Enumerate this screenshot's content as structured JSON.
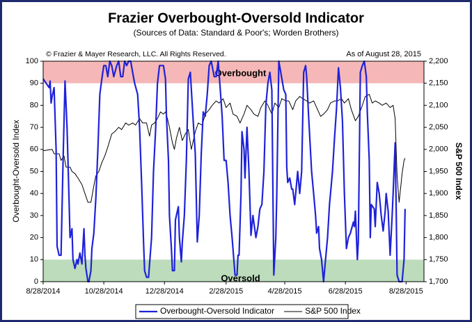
{
  "chart_data": {
    "type": "line",
    "title": "Frazier Overbought-Oversold Indicator",
    "subtitle": "(Sources of Data: Standard & Poor's; Worden Brothers)",
    "annotations": [
      "© Frazier & Mayer Research, LLC. All Rights Reserved.",
      "As of August 28, 2015"
    ],
    "ylabel": "Overbought-Oversold Index",
    "y2label": "S&P 500 Index",
    "xlim": [
      0,
      383
    ],
    "xticks": [
      {
        "value": 0,
        "label": "8/28/2014"
      },
      {
        "value": 61,
        "label": "10/28/2014"
      },
      {
        "value": 122,
        "label": "12/28/2014"
      },
      {
        "value": 184,
        "label": "2/28/2015"
      },
      {
        "value": 243,
        "label": "4/28/2015"
      },
      {
        "value": 304,
        "label": "6/28/2015"
      },
      {
        "value": 365,
        "label": "8/28/2015"
      }
    ],
    "ylim": [
      0,
      100
    ],
    "yticks": [
      0,
      10,
      20,
      30,
      40,
      50,
      60,
      70,
      80,
      90,
      100
    ],
    "y2lim": [
      1700,
      2200
    ],
    "y2ticks": [
      {
        "value": 1700,
        "label": "1,700"
      },
      {
        "value": 1750,
        "label": "1,750"
      },
      {
        "value": 1800,
        "label": "1,800"
      },
      {
        "value": 1850,
        "label": "1,850"
      },
      {
        "value": 1900,
        "label": "1,900"
      },
      {
        "value": 1950,
        "label": "1,950"
      },
      {
        "value": 2000,
        "label": "2,000"
      },
      {
        "value": 2050,
        "label": "2,050"
      },
      {
        "value": 2100,
        "label": "2,100"
      },
      {
        "value": 2150,
        "label": "2,150"
      },
      {
        "value": 2200,
        "label": "2,200"
      }
    ],
    "bands": [
      {
        "label": "Overbought",
        "range": [
          90,
          100
        ],
        "color": "#f5b7b7"
      },
      {
        "label": "Oversold",
        "range": [
          0,
          10
        ],
        "color": "#bcdcbc"
      }
    ],
    "legend": "bottom",
    "series": [
      {
        "name": "Overbought-Oversold Indicator",
        "color": "#1f22d8",
        "axis": "y",
        "x": [
          0,
          3,
          6,
          7,
          8,
          9,
          11,
          13,
          14,
          16,
          18,
          20,
          22,
          24,
          26,
          27,
          29,
          30,
          32,
          34,
          35,
          37,
          39,
          41,
          42,
          43,
          45,
          46,
          48,
          49,
          51,
          53,
          55,
          57,
          59,
          61,
          63,
          65,
          67,
          69,
          71,
          74,
          76,
          78,
          80,
          82,
          84,
          86,
          88,
          90,
          92,
          95,
          97,
          99,
          101,
          102,
          104,
          106,
          109,
          111,
          113,
          115,
          117,
          119,
          121,
          123,
          124,
          126,
          127,
          129,
          130,
          132,
          133,
          134,
          136,
          137,
          139,
          140,
          142,
          144,
          146,
          148,
          151,
          153,
          155,
          157,
          159,
          161,
          163,
          165,
          167,
          169,
          172,
          174,
          176,
          178,
          180,
          182,
          184,
          186,
          188,
          190,
          193,
          195,
          196,
          197,
          199,
          200,
          202,
          203,
          205,
          207,
          209,
          211,
          214,
          216,
          218,
          220,
          222,
          224,
          226,
          228,
          230,
          232,
          234,
          235,
          237,
          239,
          242,
          244,
          245,
          246,
          248,
          250,
          251,
          253,
          256,
          258,
          260,
          262,
          264,
          265,
          267,
          270,
          272,
          274,
          275,
          277,
          278,
          280,
          282,
          284,
          286,
          288,
          291,
          293,
          295,
          297,
          299,
          301,
          303,
          305,
          307,
          309,
          312,
          313,
          314,
          316,
          317,
          319,
          321,
          323,
          325,
          326,
          328,
          329,
          330,
          333,
          334,
          336,
          338,
          340,
          342,
          344,
          345,
          347,
          349,
          351,
          352,
          354,
          355,
          356,
          358,
          361,
          363,
          364
        ],
        "values": [
          92,
          90,
          88,
          91,
          81,
          84,
          88,
          60,
          16,
          12,
          12,
          55,
          91,
          70,
          38,
          20,
          24,
          10,
          6,
          10,
          8,
          13,
          8,
          24,
          12,
          6,
          0,
          0,
          5,
          15,
          22,
          38,
          60,
          85,
          92,
          98,
          98,
          93,
          100,
          98,
          93,
          98,
          100,
          93,
          93,
          100,
          98,
          100,
          100,
          95,
          90,
          85,
          70,
          45,
          18,
          5,
          2,
          2,
          20,
          50,
          68,
          90,
          98,
          98,
          98,
          92,
          75,
          55,
          30,
          15,
          5,
          5,
          28,
          30,
          34,
          20,
          9,
          18,
          30,
          55,
          92,
          95,
          72,
          58,
          18,
          30,
          58,
          77,
          75,
          85,
          98,
          100,
          93,
          93,
          100,
          88,
          75,
          55,
          55,
          45,
          30,
          20,
          3,
          3,
          12,
          12,
          40,
          68,
          60,
          47,
          70,
          50,
          21,
          30,
          20,
          25,
          33,
          35,
          50,
          80,
          90,
          95,
          87,
          3,
          20,
          40,
          100,
          95,
          87,
          85,
          52,
          45,
          47,
          42,
          42,
          35,
          50,
          40,
          50,
          95,
          98,
          93,
          75,
          50,
          40,
          30,
          22,
          25,
          15,
          10,
          0,
          10,
          20,
          35,
          50,
          65,
          78,
          97,
          88,
          73,
          40,
          15,
          20,
          22,
          27,
          25,
          32,
          10,
          18,
          95,
          98,
          100,
          93,
          77,
          55,
          20,
          35,
          33,
          25,
          45,
          40,
          30,
          23,
          32,
          40,
          32,
          12,
          30,
          40,
          63,
          35,
          3,
          0,
          0,
          10,
          33
        ]
      },
      {
        "name": "S&P 500 Index",
        "color": "#000000",
        "axis": "y2",
        "x": [
          0,
          9,
          11,
          16,
          18,
          21,
          23,
          27,
          29,
          32,
          35,
          39,
          42,
          45,
          48,
          50,
          52,
          53,
          56,
          59,
          62,
          65,
          69,
          72,
          76,
          79,
          83,
          86,
          90,
          93,
          97,
          100,
          104,
          107,
          109,
          112,
          115,
          118,
          121,
          123,
          125,
          127,
          130,
          132,
          134,
          137,
          140,
          143,
          146,
          149,
          153,
          156,
          160,
          163,
          167,
          170,
          174,
          177,
          181,
          184,
          188,
          191,
          195,
          198,
          202,
          205,
          209,
          212,
          216,
          219,
          223,
          226,
          230,
          233,
          237,
          240,
          244,
          247,
          251,
          254,
          258,
          261,
          265,
          268,
          272,
          275,
          279,
          282,
          286,
          289,
          293,
          296,
          300,
          303,
          307,
          310,
          314,
          317,
          321,
          324,
          328,
          331,
          334,
          338,
          341,
          345,
          349,
          352,
          354,
          356,
          358,
          361,
          363,
          364
        ],
        "values": [
          1997,
          2000,
          1990,
          1990,
          1975,
          1985,
          1960,
          1960,
          1950,
          1945,
          1935,
          1920,
          1900,
          1880,
          1880,
          1905,
          1930,
          1940,
          1950,
          1970,
          1985,
          2005,
          2035,
          2040,
          2050,
          2045,
          2060,
          2055,
          2060,
          2055,
          2070,
          2060,
          2060,
          2030,
          2055,
          2060,
          2070,
          2085,
          2080,
          2085,
          2070,
          2050,
          2015,
          2000,
          2025,
          2050,
          2020,
          2035,
          2045,
          2000,
          2040,
          2060,
          2055,
          2080,
          2090,
          2100,
          2110,
          2105,
          2115,
          2095,
          2105,
          2080,
          2075,
          2060,
          2080,
          2100,
          2090,
          2080,
          2075,
          2095,
          2110,
          2100,
          2080,
          2105,
          2095,
          2115,
          2110,
          2110,
          2090,
          2110,
          2120,
          2115,
          2110,
          2105,
          2110,
          2095,
          2075,
          2080,
          2090,
          2105,
          2110,
          2110,
          2115,
          2105,
          2115,
          2090,
          2065,
          2075,
          2100,
          2120,
          2125,
          2105,
          2110,
          2105,
          2100,
          2105,
          2095,
          2100,
          2070,
          1940,
          1880,
          1945,
          1975,
          1980
        ]
      }
    ]
  }
}
